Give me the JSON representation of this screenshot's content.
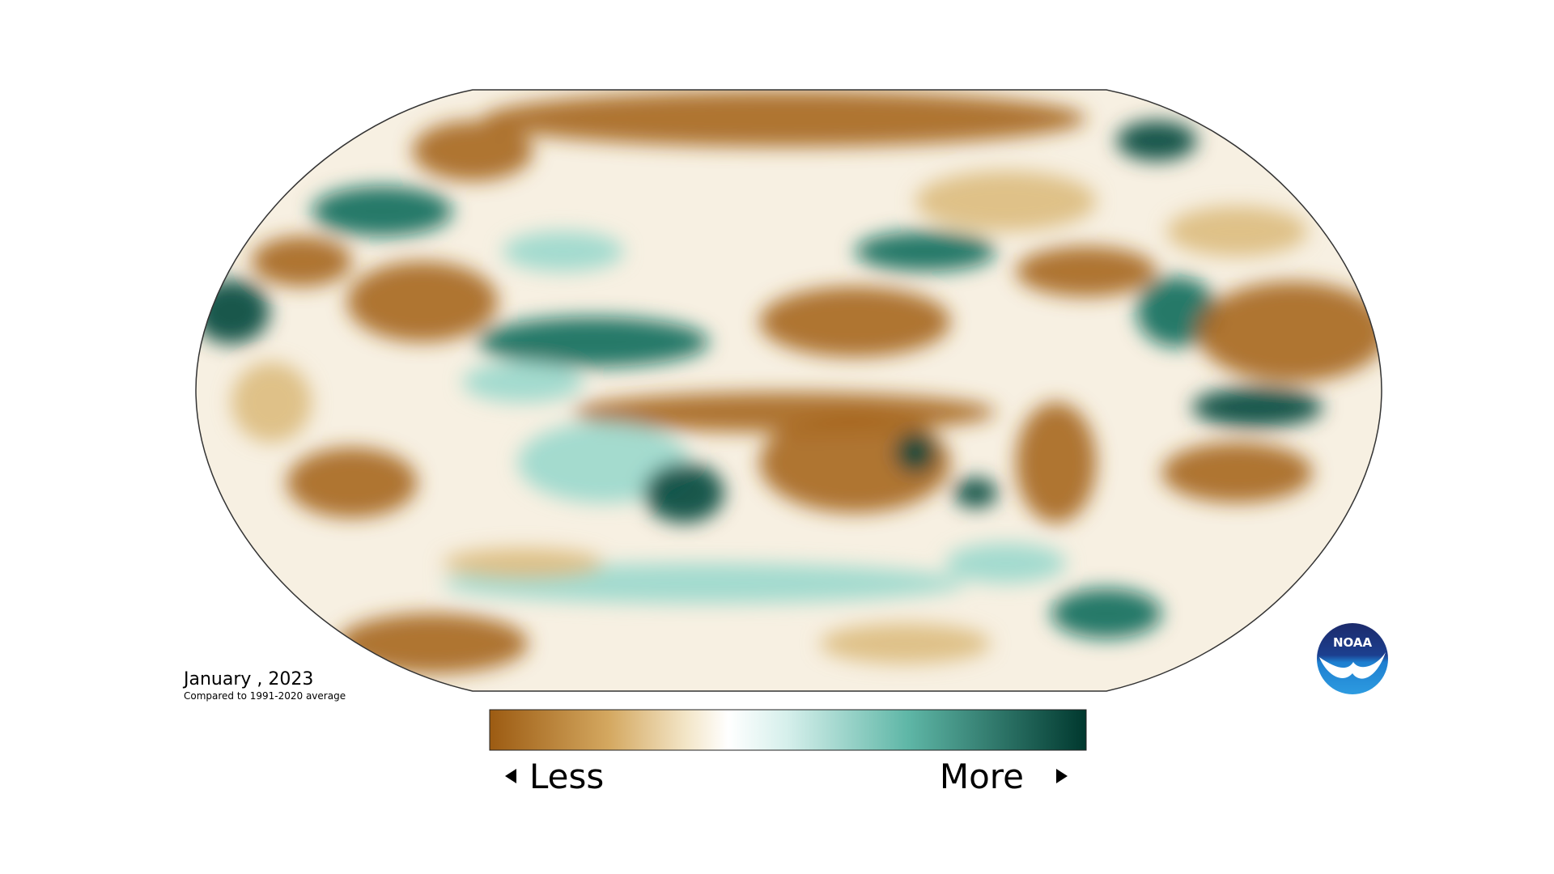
{
  "date": "January , 2023",
  "subtitle": "Compared to 1991-2020 average",
  "legend": {
    "low": "Less",
    "high": "More"
  },
  "logo": "NOAA"
}
